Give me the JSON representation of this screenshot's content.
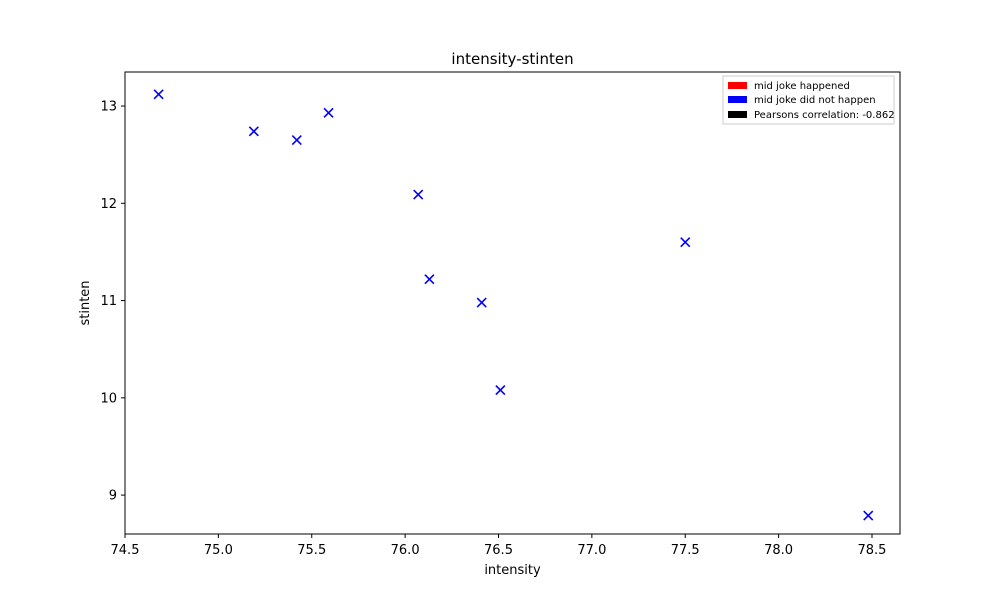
{
  "chart_data": {
    "type": "scatter",
    "title": "intensity-stinten",
    "xlabel": "intensity",
    "ylabel": "stinten",
    "xlim": [
      74.5,
      78.65
    ],
    "ylim": [
      8.6,
      13.35
    ],
    "xticks": [
      74.5,
      75.0,
      75.5,
      76.0,
      76.5,
      77.0,
      77.5,
      78.0,
      78.5
    ],
    "xtick_labels": [
      "74.5",
      "75.0",
      "75.5",
      "76.0",
      "76.5",
      "77.0",
      "77.5",
      "78.0",
      "78.5"
    ],
    "yticks": [
      9,
      10,
      11,
      12,
      13
    ],
    "ytick_labels": [
      "9",
      "10",
      "11",
      "12",
      "13"
    ],
    "grid": false,
    "legend_position": "top-right",
    "legend": [
      {
        "label": "mid joke happened",
        "color": "#ff0000"
      },
      {
        "label": "mid joke did not happen",
        "color": "#0000ff"
      },
      {
        "label": "Pearsons correlation: -0.862",
        "color": "#000000"
      }
    ],
    "marker": "x",
    "series": [
      {
        "color": "#0000ff",
        "points": [
          {
            "x": 74.68,
            "y": 13.12
          },
          {
            "x": 75.19,
            "y": 12.74
          },
          {
            "x": 75.42,
            "y": 12.65
          },
          {
            "x": 75.59,
            "y": 12.93
          },
          {
            "x": 76.07,
            "y": 12.09
          },
          {
            "x": 76.13,
            "y": 11.22
          },
          {
            "x": 76.41,
            "y": 10.98
          },
          {
            "x": 76.51,
            "y": 10.08
          },
          {
            "x": 77.5,
            "y": 11.6
          },
          {
            "x": 78.48,
            "y": 8.79
          }
        ]
      }
    ]
  }
}
